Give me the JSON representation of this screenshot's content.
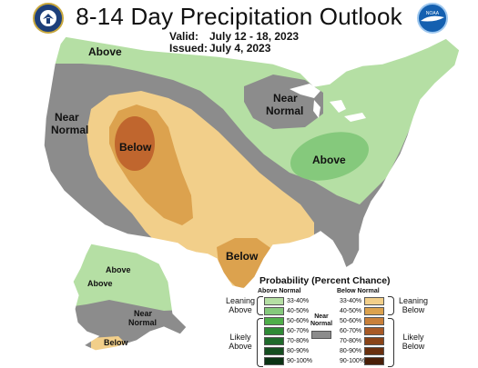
{
  "title": "8-14 Day Precipitation Outlook",
  "valid_label": "Valid:",
  "valid_value": "July 12 - 18, 2023",
  "issued_label": "Issued:",
  "issued_value": "July 4, 2023",
  "logos": {
    "left": "doc-seal",
    "right": "noaa-logo",
    "noaa_text": "NOAA"
  },
  "colors": {
    "above_light": "#b5dfa4",
    "above_mid": "#85c97c",
    "near_normal": "#8c8c8c",
    "below_light": "#f2cf8a",
    "below_mid": "#dca24e",
    "below_dark": "#c0662e"
  },
  "map_labels": {
    "above_north": "Above",
    "near_normal_west_1": "Near",
    "near_normal_west_2": "Normal",
    "near_normal_lakes_1": "Near",
    "near_normal_lakes_2": "Normal",
    "above_ohio": "Above",
    "below_west": "Below",
    "below_texas": "Below",
    "ak_above_1": "Above",
    "ak_above_2": "Above",
    "ak_near_1": "Near",
    "ak_near_2": "Normal",
    "ak_below": "Below"
  },
  "legend": {
    "title": "Probability (Percent Chance)",
    "above_header": "Above Normal",
    "below_header": "Below Normal",
    "near_header_1": "Near",
    "near_header_2": "Normal",
    "leaning_above_1": "Leaning",
    "leaning_above_2": "Above",
    "likely_above_1": "Likely",
    "likely_above_2": "Above",
    "leaning_below_1": "Leaning",
    "leaning_below_2": "Below",
    "likely_below_1": "Likely",
    "likely_below_2": "Below",
    "above_bins": [
      {
        "label": "33-40%",
        "color": "#b5dfa4"
      },
      {
        "label": "40-50%",
        "color": "#85c97c"
      },
      {
        "label": "50-60%",
        "color": "#4fae4a"
      },
      {
        "label": "60-70%",
        "color": "#2f8a36"
      },
      {
        "label": "70-80%",
        "color": "#1f6a2b"
      },
      {
        "label": "80-90%",
        "color": "#154e20"
      },
      {
        "label": "90-100%",
        "color": "#0b3314"
      }
    ],
    "below_bins": [
      {
        "label": "33-40%",
        "color": "#f2cf8a"
      },
      {
        "label": "40-50%",
        "color": "#dca24e"
      },
      {
        "label": "50-60%",
        "color": "#c9803a"
      },
      {
        "label": "60-70%",
        "color": "#a85a26"
      },
      {
        "label": "70-80%",
        "color": "#8a4418"
      },
      {
        "label": "80-90%",
        "color": "#6a300f"
      },
      {
        "label": "90-100%",
        "color": "#4a1f08"
      }
    ]
  }
}
